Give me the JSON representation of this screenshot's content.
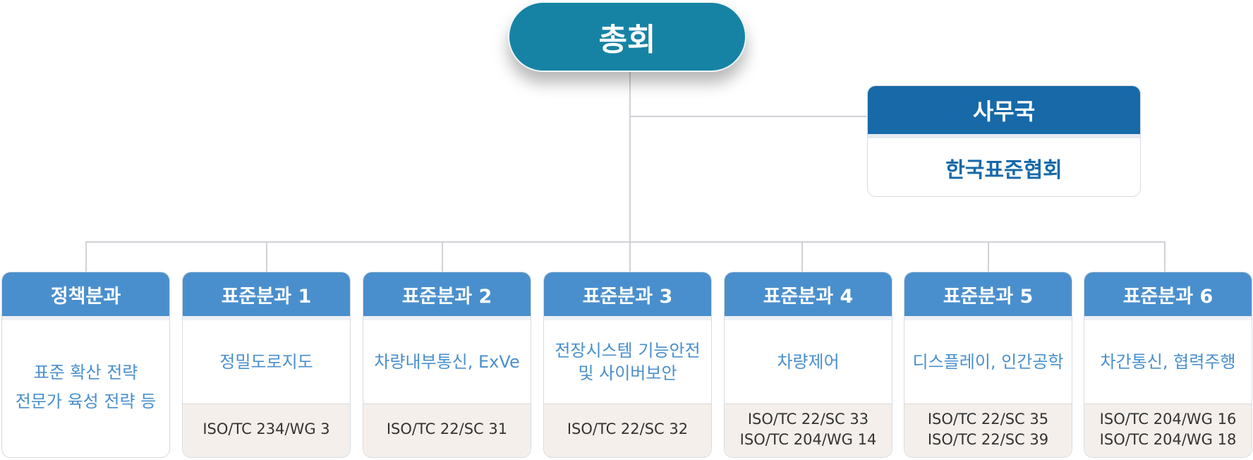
{
  "root": {
    "label": "총회"
  },
  "secretariat": {
    "title": "사무국",
    "body": "한국표준협회"
  },
  "committees": [
    {
      "title": "정책분과",
      "body": "표준 확산 전략\n전문가 육성 전략 등",
      "code": ""
    },
    {
      "title": "표준분과 1",
      "body": "정밀도로지도",
      "code": "ISO/TC 234/WG 3"
    },
    {
      "title": "표준분과 2",
      "body": "차량내부통신, ExVe",
      "code": "ISO/TC 22/SC 31"
    },
    {
      "title": "표준분과 3",
      "body": "전장시스템 기능안전\n및 사이버보안",
      "code": "ISO/TC 22/SC 32"
    },
    {
      "title": "표준분과 4",
      "body": "차량제어",
      "code": "ISO/TC 22/SC 33\nISO/TC 204/WG 14"
    },
    {
      "title": "표준분과 5",
      "body": "디스플레이, 인간공학",
      "code": "ISO/TC 22/SC 35\nISO/TC 22/SC 39"
    },
    {
      "title": "표준분과 6",
      "body": "차간통신, 협력주행",
      "code": "ISO/TC 204/WG 16\nISO/TC 204/WG 18"
    }
  ]
}
